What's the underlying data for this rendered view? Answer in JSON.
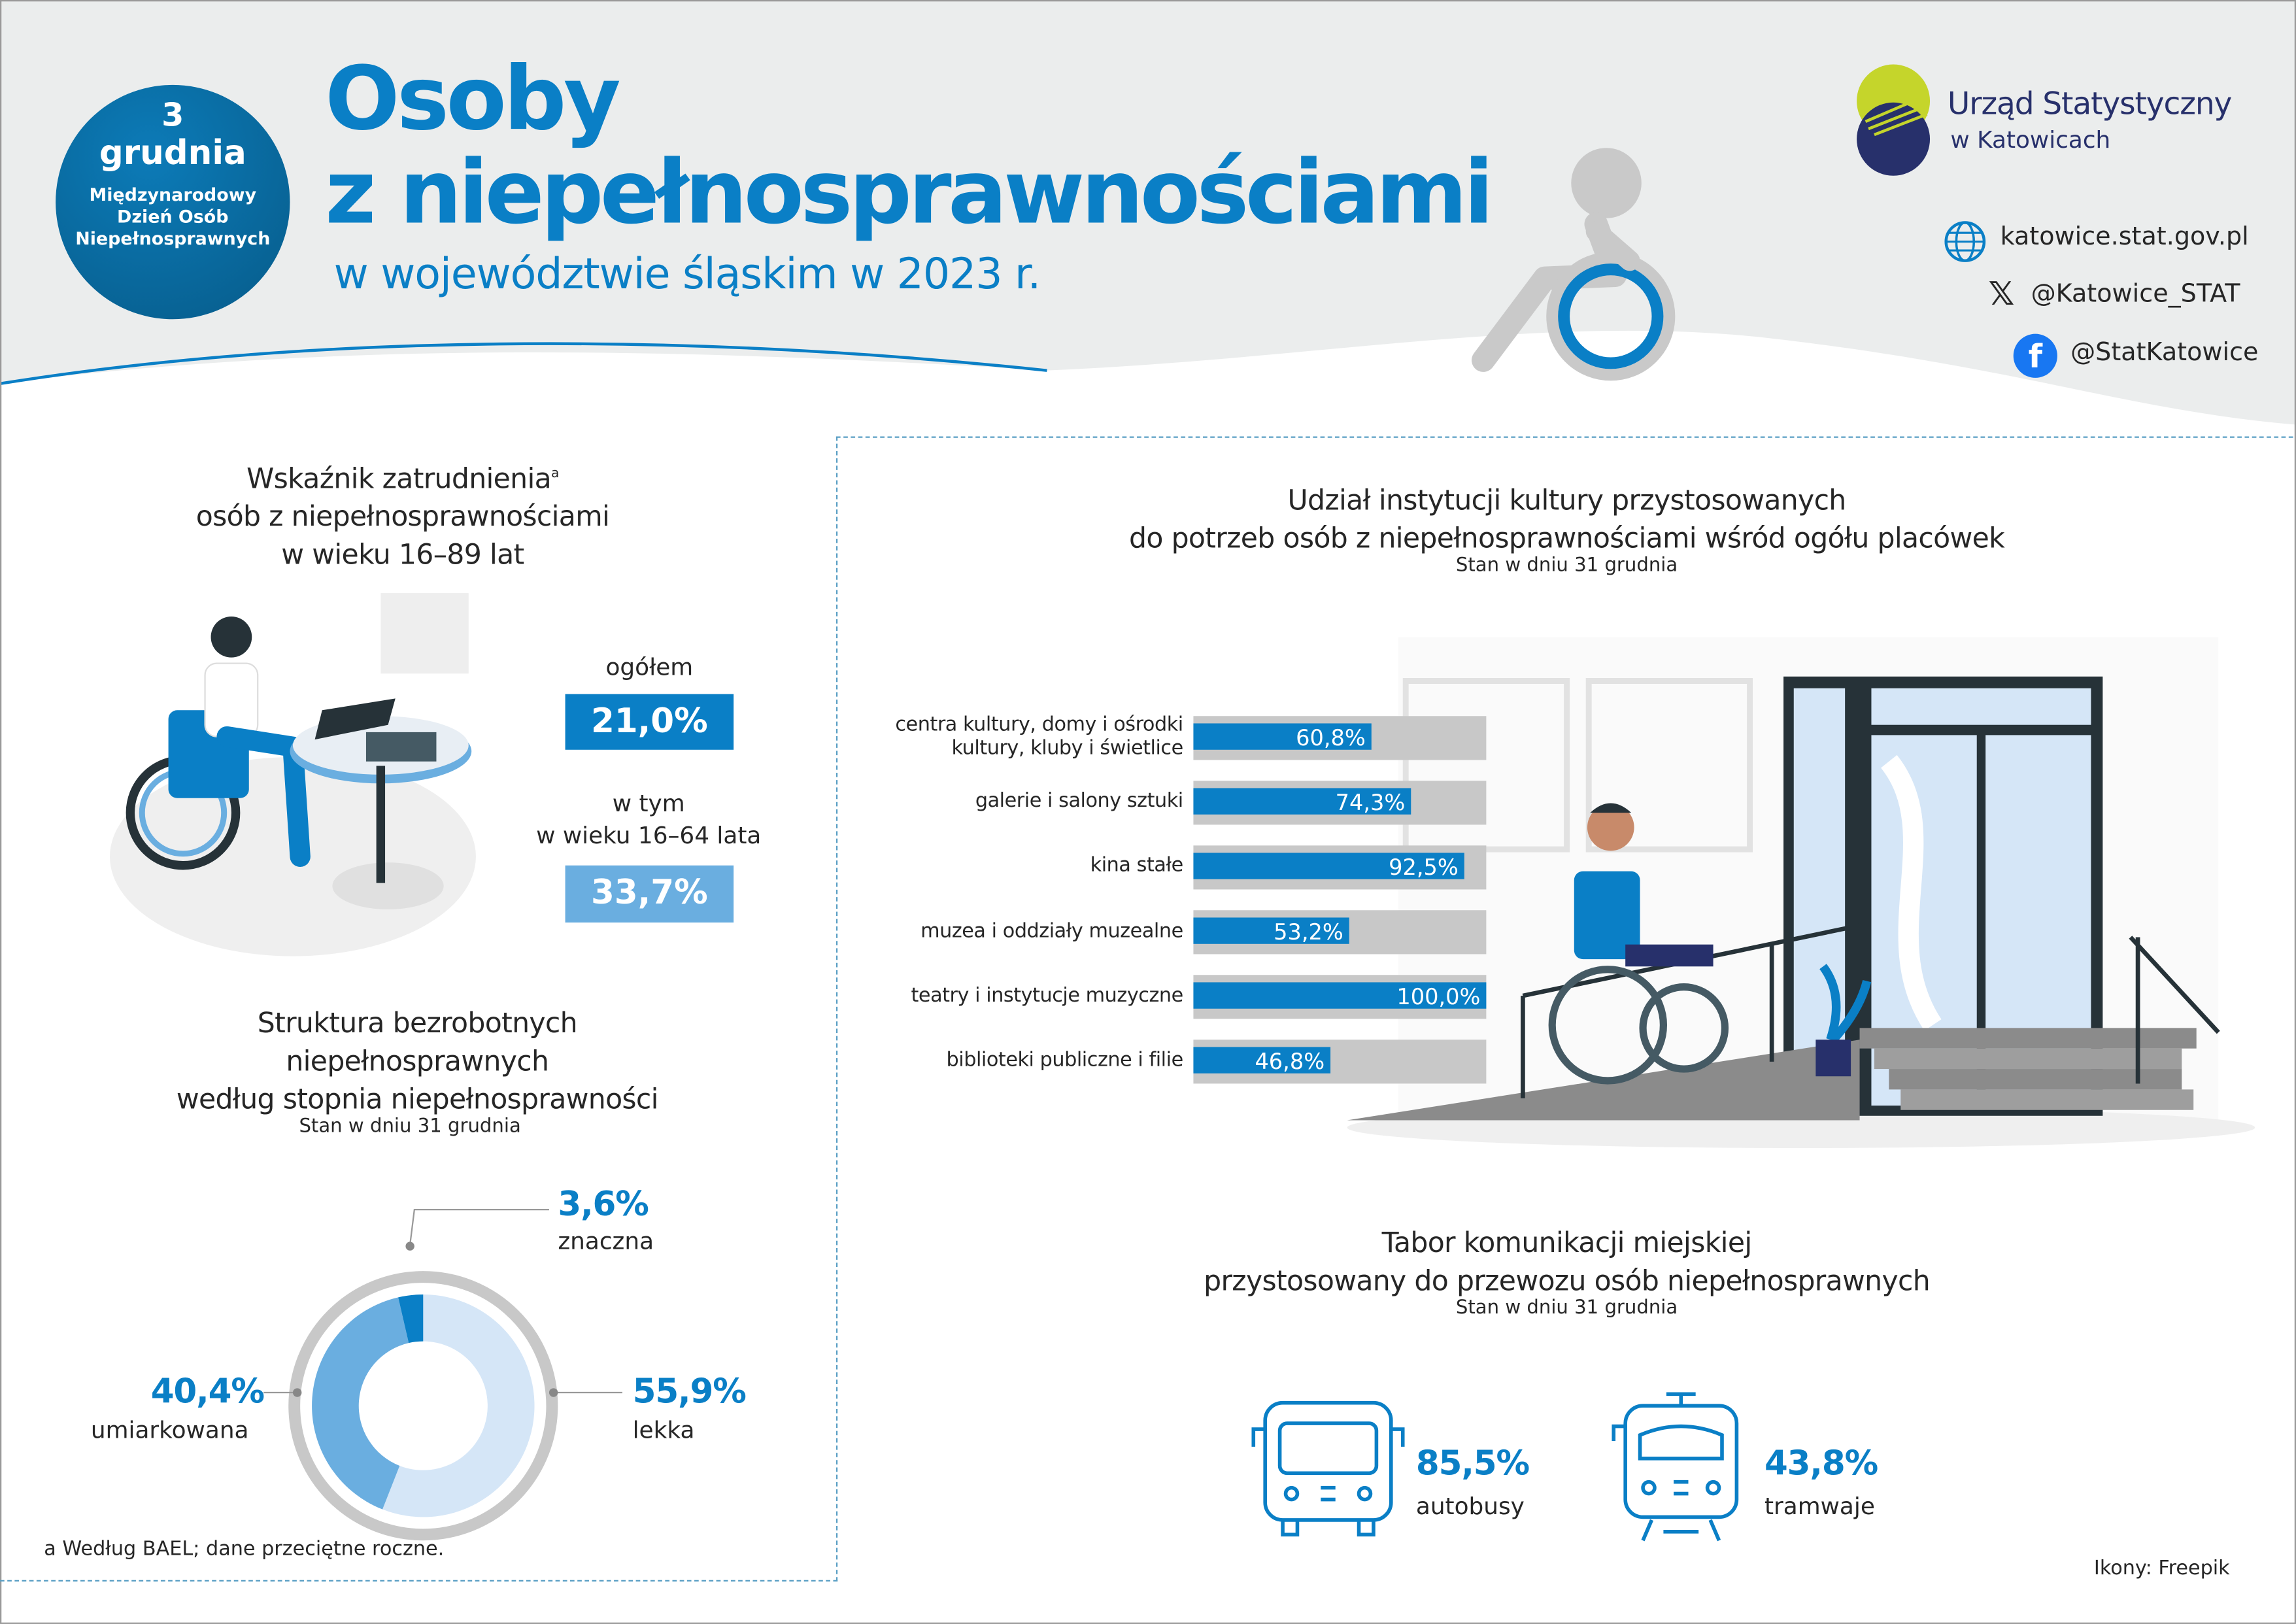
{
  "header": {
    "badge": {
      "day": "3",
      "month": "grudnia",
      "line1": "Międzynarodowy",
      "line2": "Dzień Osób",
      "line3": "Niepełnosprawnych"
    },
    "title_line1": "Osoby",
    "title_line2": "z niepełnosprawnościami",
    "subtitle": "w województwie śląskim w 2023 r.",
    "org_name": "Urząd Statystyczny",
    "org_city": "w Katowicach",
    "links": {
      "web": "katowice.stat.gov.pl",
      "x": "@Katowice_STAT",
      "facebook": "@StatKatowice"
    }
  },
  "employment": {
    "title_line1": "Wskaźnik zatrudnienia",
    "title_sup": "a",
    "title_line2": "osób z niepełnosprawnościami",
    "title_line3": "w wieku 16–89 lat",
    "total_label": "ogółem",
    "total_value": "21,0%",
    "sub_label1": "w tym",
    "sub_label2": "w wieku 16–64 lata",
    "sub_value": "33,7%"
  },
  "unemployed": {
    "title_line1": "Struktura bezrobotnych",
    "title_line2": "niepełnosprawnych",
    "title_line3": "według stopnia niepełnosprawności",
    "note": "Stan w dniu 31 grudnia"
  },
  "culture": {
    "title_line1": "Udział instytucji kultury przystosowanych",
    "title_line2": "do potrzeb osób z niepełnosprawnościami wśród ogółu placówek",
    "note": "Stan w dniu 31 grudnia"
  },
  "transport": {
    "title_line1": "Tabor komunikacji miejskiej",
    "title_line2": "przystosowany do przewozu osób niepełnosprawnych",
    "note": "Stan w dniu 31 grudnia",
    "bus_value": "85,5%",
    "bus_label": "autobusy",
    "tram_value": "43,8%",
    "tram_label": "tramwaje"
  },
  "footnote": "a Według BAEL; dane przeciętne roczne.",
  "credits": "Ikony: Freepik",
  "colors": {
    "primary": "#0a7fc6",
    "light": "#6aaee0",
    "pale": "#d5e6f7",
    "track": "#c8c8c8",
    "header_bg": "#ebeded"
  },
  "chart_data": [
    {
      "type": "bar",
      "orientation": "horizontal",
      "categories": [
        "centra kultury, domy i ośrodki kultury, kluby i świetlice",
        "galerie i salony sztuki",
        "kina stałe",
        "muzea i oddziały muzealne",
        "teatry i instytucje muzyczne",
        "biblioteki publiczne i filie"
      ],
      "values": [
        60.8,
        74.3,
        92.5,
        53.2,
        100.0,
        46.8
      ],
      "data_labels": [
        "60,8%",
        "74,3%",
        "92,5%",
        "53,2%",
        "100,0%",
        "46,8%"
      ],
      "xlim": [
        0,
        100
      ]
    },
    {
      "type": "pie",
      "donut": true,
      "categories": [
        "lekka",
        "umiarkowana",
        "znaczna"
      ],
      "values": [
        55.9,
        40.4,
        3.6
      ],
      "data_labels": [
        "55,9%",
        "40,4%",
        "3,6%"
      ],
      "colors": [
        "#d5e6f7",
        "#6aaee0",
        "#0a7fc6"
      ]
    }
  ]
}
